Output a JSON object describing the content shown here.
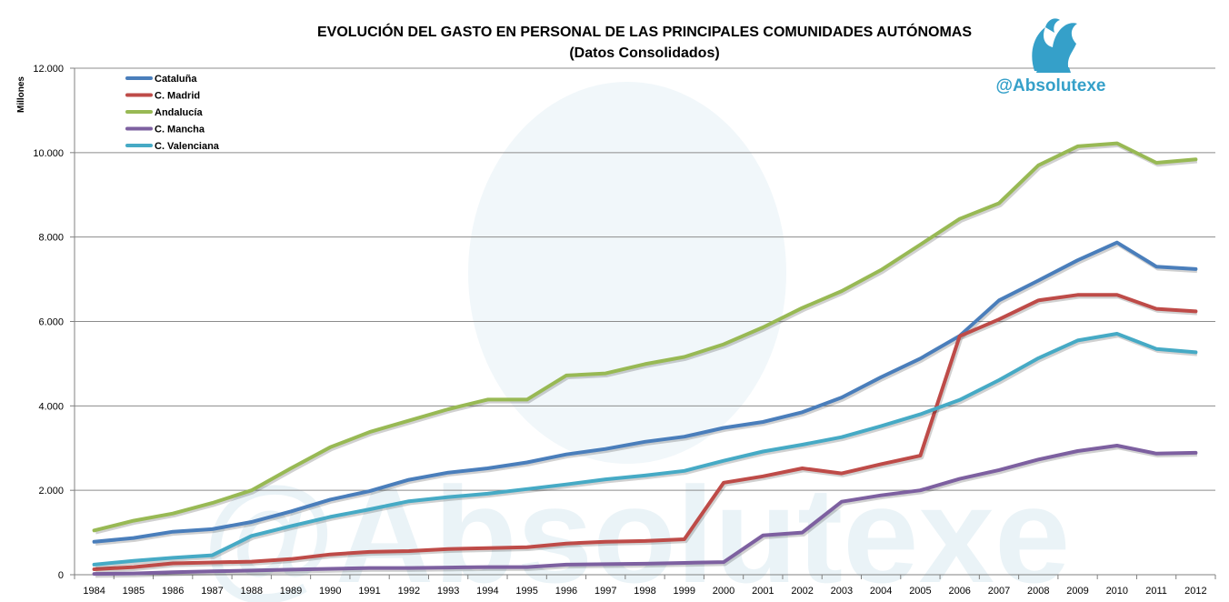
{
  "chart_data": {
    "type": "line",
    "title": "EVOLUCIÓN DEL GASTO EN PERSONAL DE LAS PRINCIPALES COMUNIDADES AUTÓNOMAS",
    "subtitle": "(Datos Consolidados)",
    "ylabel": "Millones",
    "xlabel": "",
    "ylim": [
      0,
      12000
    ],
    "yticks": [
      0,
      2000,
      4000,
      6000,
      8000,
      10000,
      12000
    ],
    "ytick_labels": [
      "0",
      "2.000",
      "4.000",
      "6.000",
      "8.000",
      "10.000",
      "12.000"
    ],
    "grid": "horizontal",
    "legend_position": "top-left",
    "x": [
      "1984",
      "1985",
      "1986",
      "1987",
      "1988",
      "1989",
      "1990",
      "1991",
      "1992",
      "1993",
      "1994",
      "1995",
      "1996",
      "1997",
      "1998",
      "1999",
      "2000",
      "2001",
      "2002",
      "2003",
      "2004",
      "2005",
      "2006",
      "2007",
      "2008",
      "2009",
      "2010",
      "2011",
      "2012"
    ],
    "series": [
      {
        "name": "Cataluña",
        "color": "#4A7EBB",
        "values": [
          780,
          870,
          1020,
          1080,
          1250,
          1500,
          1780,
          1980,
          2250,
          2420,
          2520,
          2660,
          2850,
          2980,
          3150,
          3270,
          3480,
          3620,
          3850,
          4200,
          4680,
          5120,
          5660,
          6500,
          6970,
          7450,
          7870,
          7300,
          7240
        ]
      },
      {
        "name": "C. Madrid",
        "color": "#BE4B48",
        "values": [
          130,
          180,
          270,
          290,
          310,
          370,
          480,
          540,
          560,
          610,
          630,
          650,
          740,
          780,
          800,
          840,
          2180,
          2330,
          2520,
          2400,
          2620,
          2820,
          5650,
          6050,
          6500,
          6630,
          6630,
          6300,
          6240
        ]
      },
      {
        "name": "Andalucía",
        "color": "#98B954",
        "values": [
          1050,
          1280,
          1450,
          1700,
          2000,
          2520,
          3020,
          3380,
          3650,
          3920,
          4150,
          4150,
          4720,
          4770,
          4990,
          5160,
          5460,
          5860,
          6320,
          6720,
          7220,
          7820,
          8430,
          8800,
          9700,
          10150,
          10220,
          9760,
          9840
        ]
      },
      {
        "name": "C. Mancha",
        "color": "#7D60A0",
        "values": [
          20,
          30,
          60,
          80,
          100,
          120,
          140,
          160,
          160,
          170,
          180,
          180,
          240,
          250,
          260,
          280,
          300,
          930,
          1000,
          1730,
          1880,
          2000,
          2270,
          2480,
          2730,
          2930,
          3060,
          2870,
          2890
        ]
      },
      {
        "name": "C. Valenciana",
        "color": "#46AAC5",
        "values": [
          240,
          330,
          400,
          460,
          920,
          1150,
          1370,
          1550,
          1740,
          1840,
          1920,
          2030,
          2140,
          2260,
          2350,
          2460,
          2700,
          2920,
          3080,
          3260,
          3520,
          3800,
          4140,
          4610,
          5130,
          5550,
          5710,
          5350,
          5270
        ]
      }
    ]
  },
  "branding": {
    "handle": "@Absolutexe",
    "handle_color": "#35A0C9",
    "watermark": "@Absolutexe",
    "logo_icon": "gryphon-icon"
  },
  "colors": {
    "grid": "#8c8c8c",
    "axis": "#808080"
  }
}
